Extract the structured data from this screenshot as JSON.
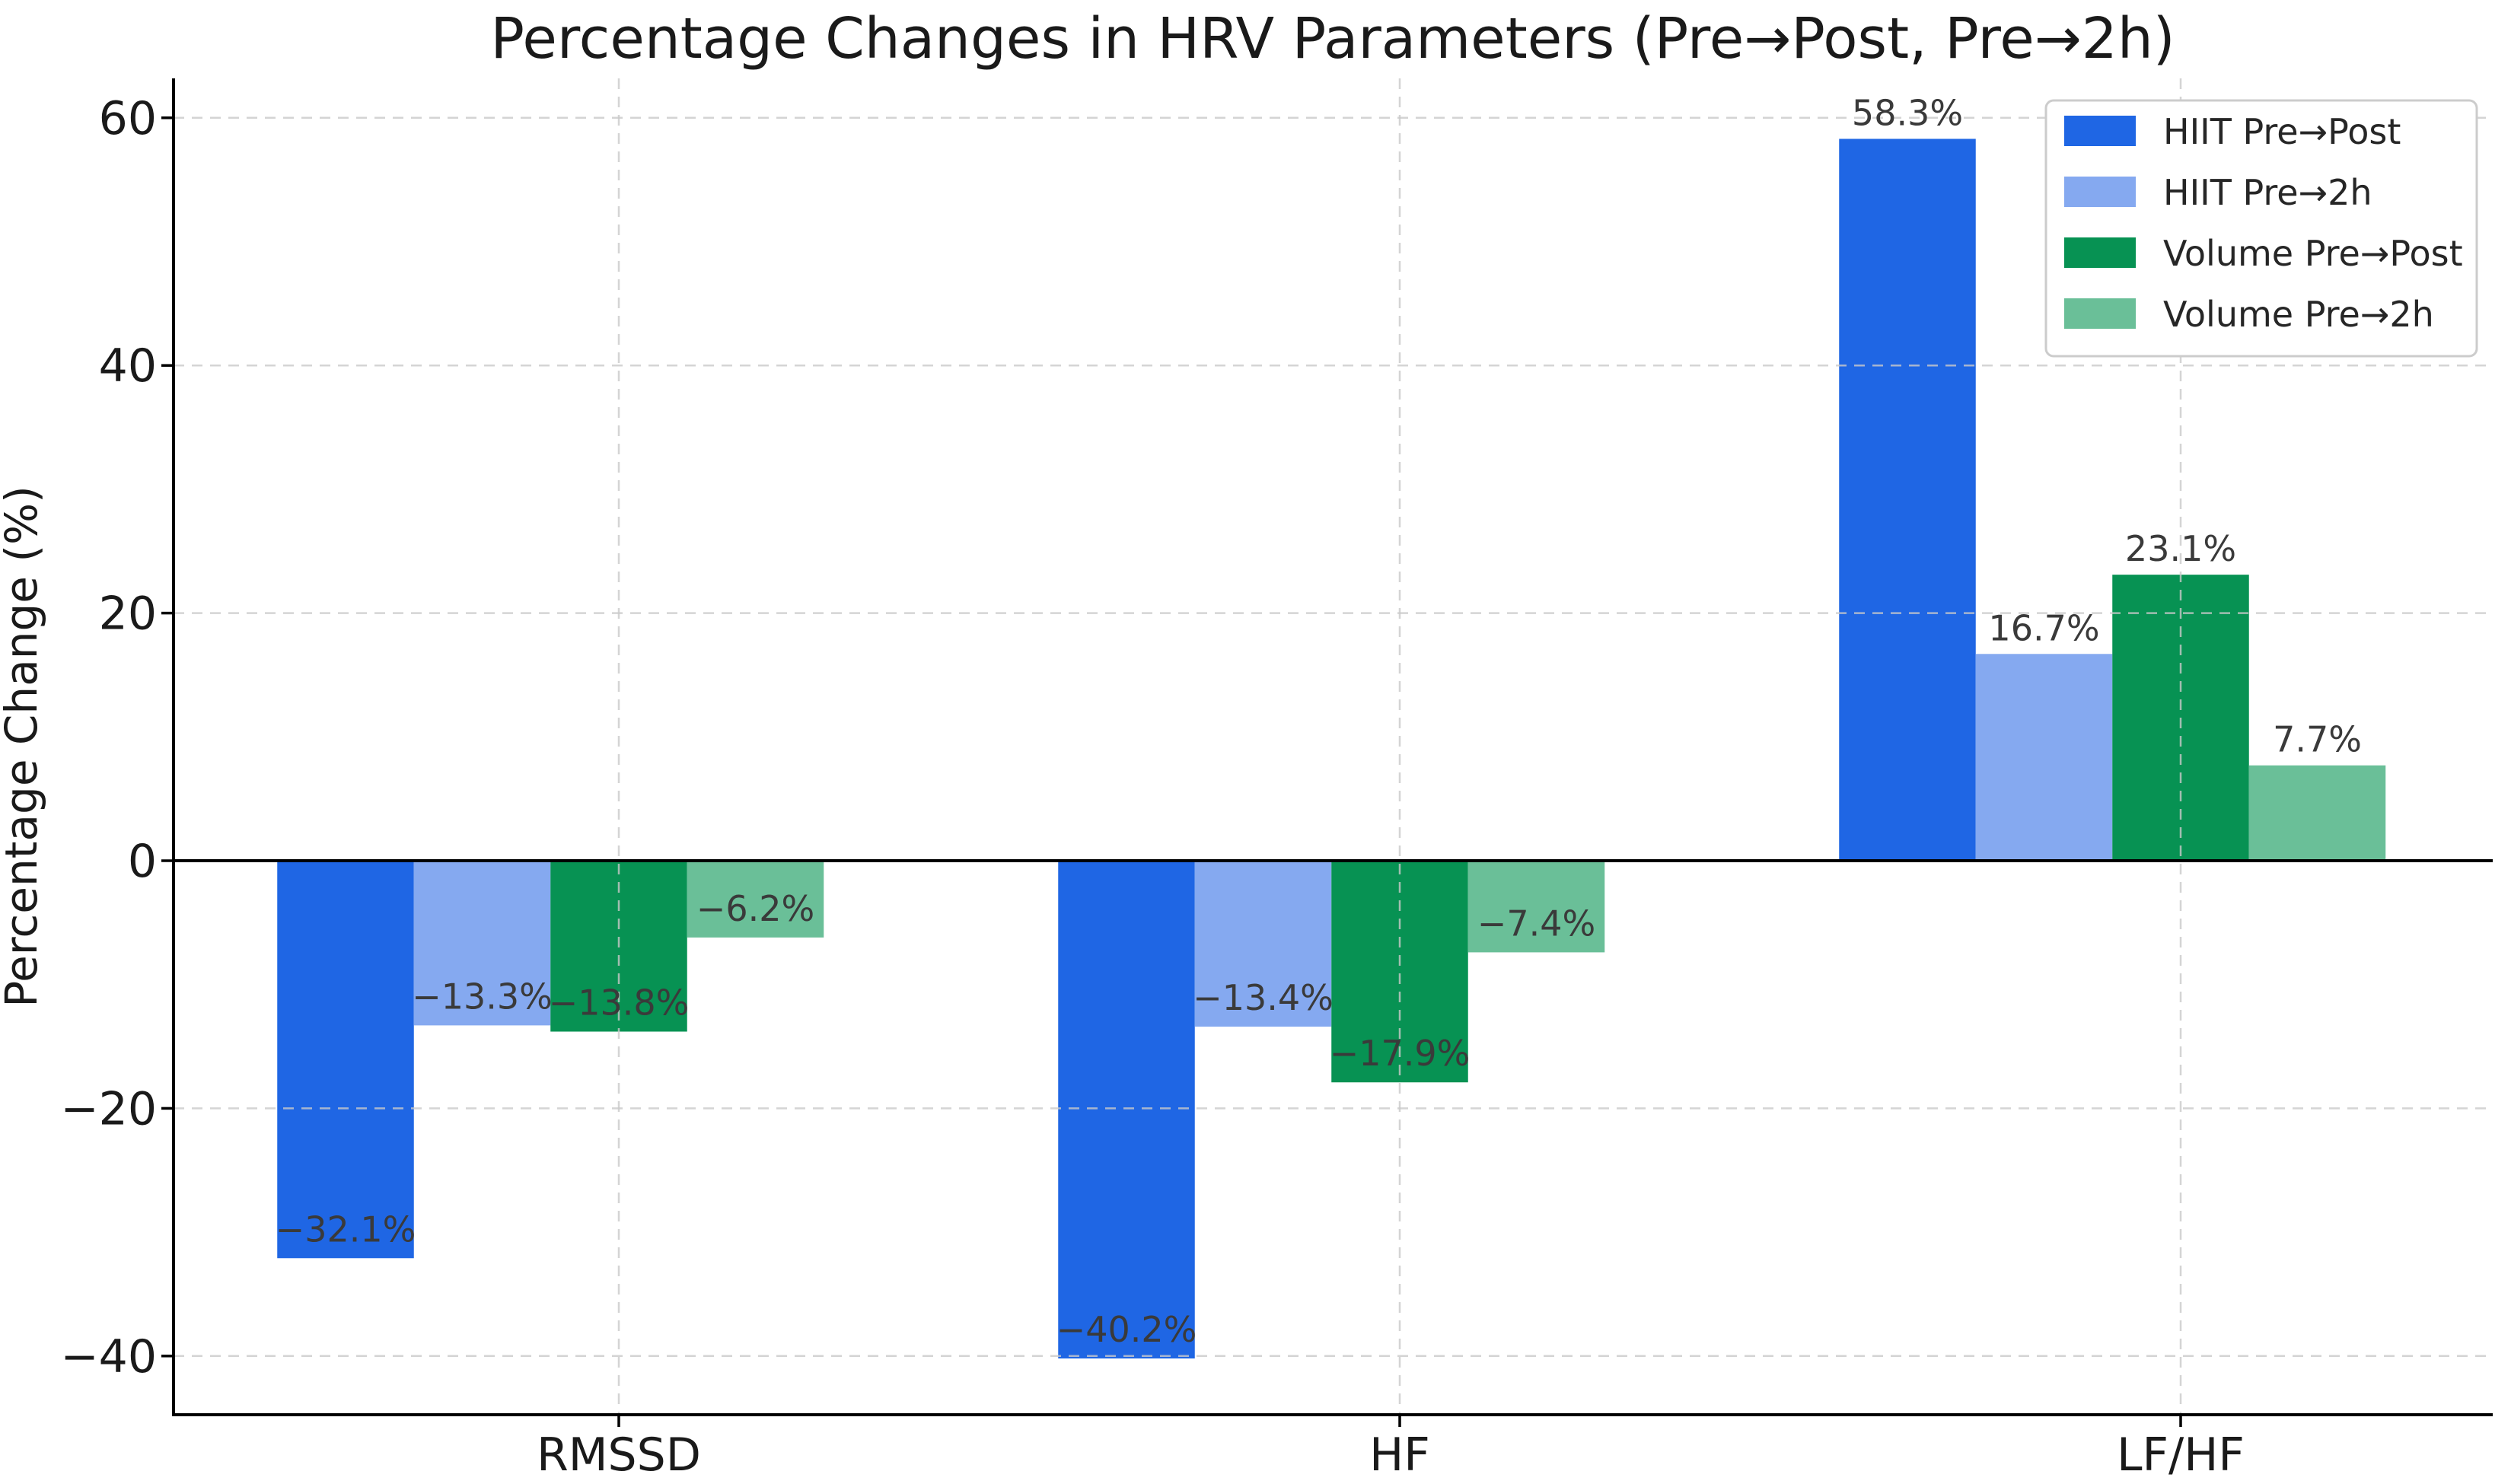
{
  "chart_data": {
    "type": "bar",
    "title": "Percentage Changes in HRV Parameters (Pre→Post, Pre→2h)",
    "xlabel": "",
    "ylabel": "Percentage Change (%)",
    "categories": [
      "RMSSD",
      "HF",
      "LF/HF"
    ],
    "series": [
      {
        "name": "HIIT Pre→Post",
        "color": "#1f66e4",
        "values": [
          -32.1,
          -40.2,
          58.3
        ]
      },
      {
        "name": "HIIT Pre→2h",
        "color": "#85a9f0",
        "values": [
          -13.3,
          -13.4,
          16.7
        ]
      },
      {
        "name": "Volume Pre→Post",
        "color": "#079253",
        "values": [
          -13.8,
          -17.9,
          23.1
        ]
      },
      {
        "name": "Volume Pre→2h",
        "color": "#6abf98",
        "values": [
          -6.2,
          -7.4,
          7.7
        ]
      }
    ],
    "bar_labels": [
      [
        "−32.1%",
        "−40.2%",
        "58.3%"
      ],
      [
        "−13.3%",
        "−13.4%",
        "16.7%"
      ],
      [
        "−13.8%",
        "−17.9%",
        "23.1%"
      ],
      [
        "−6.2%",
        "−7.4%",
        "7.7%"
      ]
    ],
    "yticks": [
      -40,
      -20,
      0,
      20,
      40,
      60
    ],
    "ytick_labels": [
      "−40",
      "−20",
      "0",
      "20",
      "40",
      "60"
    ],
    "ylim": [
      -44.7,
      63.2
    ],
    "grid": true,
    "zero_line": true,
    "legend": {
      "position": "upper right",
      "entries": [
        "HIIT Pre→Post",
        "HIIT Pre→2h",
        "Volume Pre→Post",
        "Volume Pre→2h"
      ]
    },
    "colors": {
      "background": "#ffffff",
      "grid": "#c9c9c9",
      "axis": "#000000",
      "title_text": "#1a1a1a",
      "tick_text": "#1a1a1a",
      "bar_label_text": "#3a3a3a",
      "legend_text": "#262626",
      "legend_border": "#cccccc",
      "legend_background": "#ffffff"
    }
  }
}
